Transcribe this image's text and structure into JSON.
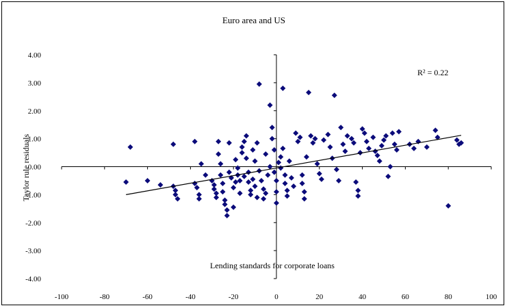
{
  "chart_data": {
    "type": "scatter",
    "title": "Euro area and US",
    "xlabel": "Lending standards for corporate loans",
    "ylabel": "Taylor rule residuals",
    "annotation": "R² = 0.22",
    "xlim": [
      -100,
      100
    ],
    "ylim": [
      -4,
      4
    ],
    "xticks": [
      -100,
      -80,
      -60,
      -40,
      -20,
      0,
      20,
      40,
      60,
      80,
      100
    ],
    "xtick_labels": [
      "-100",
      "-80",
      "-60",
      "-40",
      "-20",
      "0",
      "20",
      "40",
      "60",
      "80",
      "100"
    ],
    "yticks": [
      4,
      3,
      2,
      1,
      0,
      -1,
      -2,
      -3,
      -4
    ],
    "ytick_labels": [
      "4.00",
      "3.00",
      "2.00",
      "1.00",
      "0.00",
      "-1.00",
      "-2.00",
      "-3.00",
      "-4.00"
    ],
    "marker_color": "#0b0b7a",
    "trendline": {
      "x": [
        -70,
        86
      ],
      "y": [
        -1.0,
        1.12
      ]
    },
    "points": [
      [
        -70,
        -0.55
      ],
      [
        -68,
        0.7
      ],
      [
        -60,
        -0.5
      ],
      [
        -54,
        -0.65
      ],
      [
        -48,
        0.8
      ],
      [
        -48,
        -0.7
      ],
      [
        -47,
        -0.85
      ],
      [
        -47,
        -1.0
      ],
      [
        -46,
        -1.15
      ],
      [
        -38,
        0.9
      ],
      [
        -38,
        -0.6
      ],
      [
        -37,
        -0.75
      ],
      [
        -36,
        -1.0
      ],
      [
        -36,
        -1.15
      ],
      [
        -35,
        0.1
      ],
      [
        -33,
        -0.3
      ],
      [
        -30,
        -0.5
      ],
      [
        -29,
        -0.65
      ],
      [
        -29,
        -0.8
      ],
      [
        -28,
        -0.95
      ],
      [
        -28,
        -1.1
      ],
      [
        -27,
        0.9
      ],
      [
        -27,
        0.45
      ],
      [
        -26,
        0.1
      ],
      [
        -26,
        -0.3
      ],
      [
        -25,
        -0.6
      ],
      [
        -25,
        -0.9
      ],
      [
        -24,
        -1.2
      ],
      [
        -24,
        -1.35
      ],
      [
        -23,
        -1.55
      ],
      [
        -23,
        -1.75
      ],
      [
        -22,
        0.85
      ],
      [
        -22,
        -0.2
      ],
      [
        -21,
        -0.4
      ],
      [
        -20,
        -0.75
      ],
      [
        -20,
        -1.45
      ],
      [
        -19,
        -0.55
      ],
      [
        -19,
        0.25
      ],
      [
        -18,
        -0.05
      ],
      [
        -18,
        -0.3
      ],
      [
        -17,
        -0.5
      ],
      [
        -17,
        -0.95
      ],
      [
        -16,
        0.5
      ],
      [
        -16,
        0.7
      ],
      [
        -15,
        0.9
      ],
      [
        -15,
        -0.35
      ],
      [
        -14,
        1.1
      ],
      [
        -14,
        0.3
      ],
      [
        -13,
        -0.2
      ],
      [
        -13,
        -0.55
      ],
      [
        -12,
        -0.85
      ],
      [
        -12,
        -1.0
      ],
      [
        -11,
        0.6
      ],
      [
        -11,
        -0.45
      ],
      [
        -10,
        0.2
      ],
      [
        -10,
        -0.7
      ],
      [
        -9,
        -1.1
      ],
      [
        -9,
        0.85
      ],
      [
        -8,
        2.95
      ],
      [
        -8,
        -0.15
      ],
      [
        -7,
        -0.5
      ],
      [
        -6,
        -0.8
      ],
      [
        -6,
        -1.15
      ],
      [
        -5,
        -0.95
      ],
      [
        -5,
        0.45
      ],
      [
        -4,
        -0.3
      ],
      [
        -3,
        2.2
      ],
      [
        -3,
        0.0
      ],
      [
        -2,
        1.4
      ],
      [
        -2,
        1.0
      ],
      [
        -1,
        0.6
      ],
      [
        -1,
        -0.2
      ],
      [
        0,
        -0.5
      ],
      [
        0,
        -0.9
      ],
      [
        0,
        -1.3
      ],
      [
        1,
        0.15
      ],
      [
        2,
        0.35
      ],
      [
        2,
        -0.05
      ],
      [
        3,
        0.65
      ],
      [
        3,
        2.8
      ],
      [
        4,
        -0.3
      ],
      [
        4,
        -0.6
      ],
      [
        5,
        -0.85
      ],
      [
        5,
        -1.05
      ],
      [
        6,
        0.2
      ],
      [
        7,
        -0.4
      ],
      [
        8,
        -0.7
      ],
      [
        9,
        1.2
      ],
      [
        10,
        0.9
      ],
      [
        11,
        1.05
      ],
      [
        12,
        -0.3
      ],
      [
        12,
        -0.6
      ],
      [
        13,
        -0.9
      ],
      [
        13,
        -1.15
      ],
      [
        14,
        0.35
      ],
      [
        15,
        2.65
      ],
      [
        16,
        1.1
      ],
      [
        17,
        0.85
      ],
      [
        18,
        1.0
      ],
      [
        19,
        0.1
      ],
      [
        20,
        -0.25
      ],
      [
        21,
        -0.45
      ],
      [
        22,
        0.95
      ],
      [
        24,
        1.15
      ],
      [
        25,
        0.7
      ],
      [
        26,
        0.3
      ],
      [
        27,
        2.55
      ],
      [
        28,
        -0.1
      ],
      [
        29,
        -0.5
      ],
      [
        30,
        1.4
      ],
      [
        31,
        0.8
      ],
      [
        32,
        0.55
      ],
      [
        33,
        1.1
      ],
      [
        35,
        1.0
      ],
      [
        36,
        0.85
      ],
      [
        37,
        -0.55
      ],
      [
        38,
        -0.85
      ],
      [
        38,
        -1.05
      ],
      [
        39,
        0.5
      ],
      [
        40,
        1.35
      ],
      [
        41,
        1.2
      ],
      [
        42,
        0.9
      ],
      [
        43,
        0.65
      ],
      [
        45,
        1.05
      ],
      [
        46,
        0.55
      ],
      [
        47,
        0.4
      ],
      [
        48,
        0.2
      ],
      [
        49,
        0.75
      ],
      [
        50,
        0.95
      ],
      [
        51,
        1.1
      ],
      [
        52,
        -0.35
      ],
      [
        53,
        0.0
      ],
      [
        54,
        1.2
      ],
      [
        55,
        0.8
      ],
      [
        56,
        0.6
      ],
      [
        57,
        1.25
      ],
      [
        62,
        0.8
      ],
      [
        64,
        0.65
      ],
      [
        66,
        0.9
      ],
      [
        70,
        0.7
      ],
      [
        74,
        1.3
      ],
      [
        75,
        1.05
      ],
      [
        80,
        -1.4
      ],
      [
        84,
        0.95
      ],
      [
        85,
        0.8
      ],
      [
        86,
        0.85
      ]
    ]
  }
}
